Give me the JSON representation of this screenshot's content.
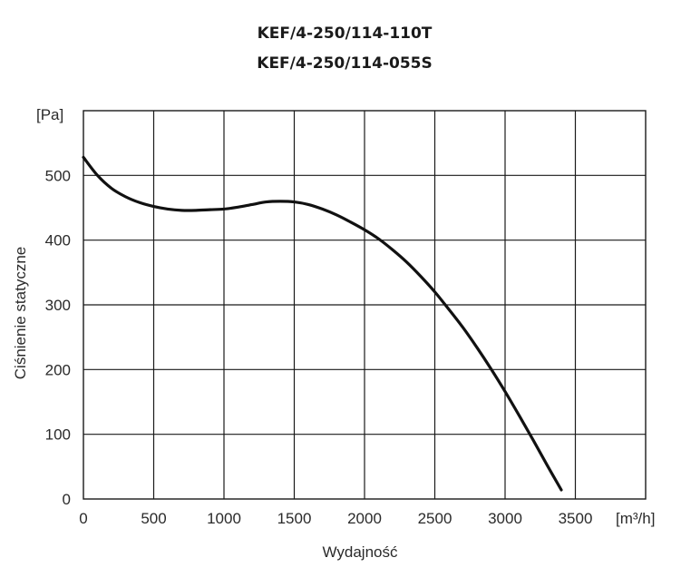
{
  "chart_data": {
    "type": "line",
    "title_lines": [
      "KEF/4-250/114-110T",
      "KEF/4-250/114-055S"
    ],
    "xlabel": "Wydajność",
    "ylabel": "Ciśnienie statyczne",
    "x_unit": "[m³/h]",
    "y_unit": "[Pa]",
    "xlim": [
      0,
      4000
    ],
    "ylim": [
      0,
      600
    ],
    "x_ticks": [
      0,
      500,
      1000,
      1500,
      2000,
      2500,
      3000,
      3500
    ],
    "y_ticks": [
      0,
      100,
      200,
      300,
      400,
      500
    ],
    "grid": true,
    "series": [
      {
        "x": [
          0,
          100,
          200,
          300,
          400,
          500,
          600,
          700,
          800,
          900,
          1000,
          1100,
          1200,
          1300,
          1400,
          1500,
          1600,
          1700,
          1800,
          1900,
          2000,
          2100,
          2200,
          2300,
          2400,
          2500,
          2600,
          2700,
          2800,
          2900,
          3000,
          3100,
          3200,
          3300,
          3400
        ],
        "y": [
          528,
          500,
          480,
          467,
          458,
          452,
          448,
          446,
          446,
          447,
          448,
          451,
          455,
          459,
          460,
          459,
          455,
          448,
          439,
          428,
          416,
          402,
          385,
          366,
          344,
          320,
          293,
          265,
          234,
          201,
          166,
          129,
          91,
          52,
          14
        ]
      }
    ]
  }
}
